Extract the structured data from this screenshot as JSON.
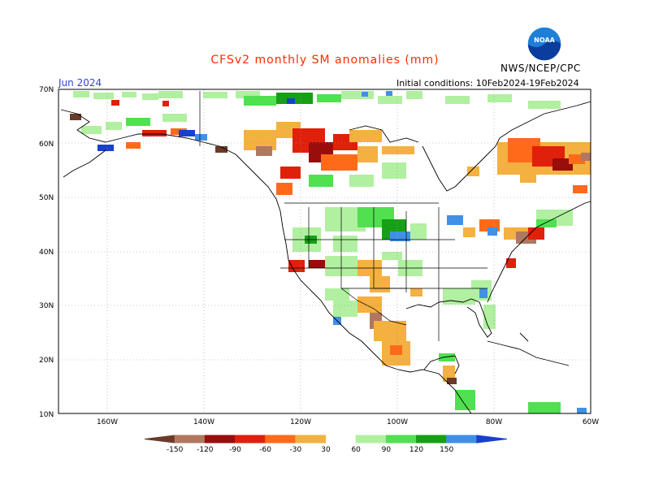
{
  "header": {
    "title": "CFSv2 monthly SM anomalies (mm)",
    "month": "Jun 2024",
    "initial_conditions": "Initial conditions: 10Feb2024-19Feb2024",
    "org": "NWS/NCEP/CPC",
    "logo_icon": "noaa-logo-icon"
  },
  "axes": {
    "lat_labels": [
      "70N",
      "60N",
      "50N",
      "40N",
      "30N",
      "20N",
      "10N"
    ],
    "lon_labels": [
      "160W",
      "140W",
      "120W",
      "100W",
      "80W",
      "60W"
    ]
  },
  "legend": {
    "labels": [
      "-150",
      "-120",
      "-90",
      "-60",
      "-30",
      "30",
      "60",
      "90",
      "120",
      "150"
    ],
    "colors": [
      "#6b3a2a",
      "#b07860",
      "#9a0d0d",
      "#e0200a",
      "#ff6a1a",
      "#f4b040",
      "#ffffff",
      "#b0f0a0",
      "#50e050",
      "#16a016",
      "#4090e8",
      "#1840d0"
    ]
  },
  "palette": {
    "land": "#ffffff",
    "coast": "#000000",
    "grid": "#999999"
  }
}
